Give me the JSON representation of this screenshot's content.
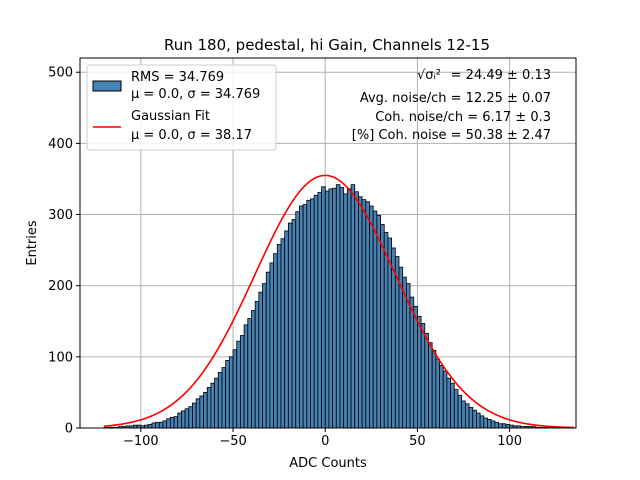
{
  "chart_data": {
    "type": "bar",
    "title": "Run 180, pedestal, hi Gain, Channels 12-15",
    "xlabel": "ADC Counts",
    "ylabel": "Entries",
    "xlim": [
      -133,
      136
    ],
    "ylim": [
      0,
      520
    ],
    "xticks": [
      -100,
      -50,
      0,
      50,
      100
    ],
    "xtick_labels": [
      "−100",
      "−50",
      "0",
      "50",
      "100"
    ],
    "yticks": [
      0,
      100,
      200,
      300,
      400,
      500
    ],
    "grid": true,
    "histogram": {
      "bin_start": -120,
      "bin_width": 2,
      "counts": [
        1,
        1,
        1,
        1,
        2,
        2,
        3,
        3,
        4,
        4,
        3,
        4,
        5,
        7,
        8,
        8,
        10,
        13,
        15,
        16,
        21,
        24,
        27,
        30,
        35,
        41,
        45,
        50,
        57,
        63,
        70,
        78,
        85,
        95,
        100,
        110,
        122,
        130,
        145,
        154,
        165,
        178,
        191,
        203,
        219,
        232,
        245,
        258,
        266,
        277,
        288,
        293,
        304,
        312,
        314,
        320,
        322,
        327,
        331,
        339,
        333,
        336,
        337,
        342,
        338,
        329,
        336,
        342,
        332,
        325,
        321,
        318,
        312,
        305,
        299,
        286,
        275,
        267,
        253,
        241,
        226,
        212,
        203,
        184,
        171,
        157,
        147,
        133,
        120,
        109,
        97,
        88,
        80,
        70,
        63,
        54,
        46,
        38,
        34,
        29,
        25,
        21,
        17,
        14,
        12,
        10,
        8,
        6,
        6,
        5,
        4,
        3,
        3,
        2,
        2,
        2,
        2,
        1,
        1,
        1,
        1,
        1,
        1,
        1,
        1,
        1,
        1
      ]
    },
    "series": [
      {
        "name": "RMS = 34.769",
        "sub": "μ = 0.0, σ = 34.769",
        "kind": "histogram",
        "color": "#4682b4"
      },
      {
        "name": "Gaussian Fit",
        "sub": "μ = 0.0, σ = 38.17",
        "kind": "curve",
        "color": "#ff0000",
        "amplitude": 355,
        "mu": 0.0,
        "sigma": 38.17,
        "x_range": [
          -120,
          135
        ]
      }
    ],
    "legend_position": "top-left",
    "annotations": [
      {
        "label": "√σᵢ²",
        "value": " = 24.49 ± 0.13"
      },
      {
        "label": "",
        "value": "Avg. noise/ch = 12.25 ± 0.07"
      },
      {
        "label": "",
        "value": "Coh. noise/ch = 6.17 ± 0.3"
      },
      {
        "label": "",
        "value": "[%] Coh. noise = 50.38 ± 2.47"
      }
    ]
  }
}
